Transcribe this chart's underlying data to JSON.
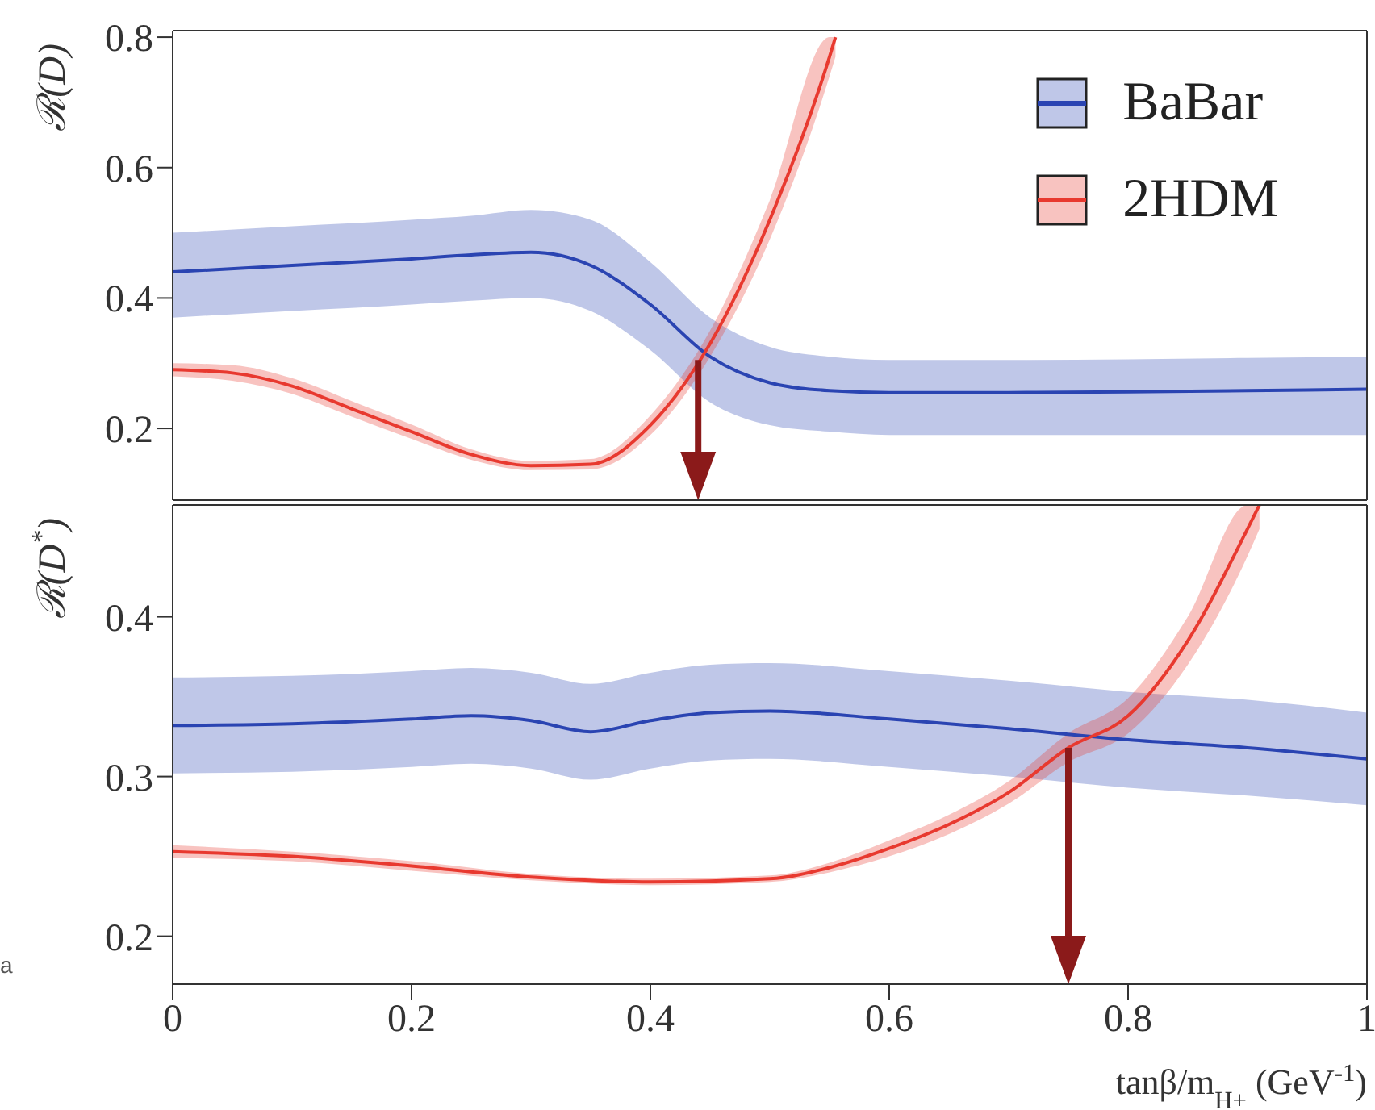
{
  "chart_data": [
    {
      "type": "line",
      "ylabel": "ℛ(D)",
      "xlim": [
        0,
        1
      ],
      "xticks": [
        0,
        0.2,
        0.4,
        0.6,
        0.8,
        1
      ],
      "ylim": [
        0.09,
        0.81
      ],
      "yticks": [
        0.2,
        0.4,
        0.6,
        0.8
      ],
      "tick_labels": "y",
      "legend": "top right",
      "grid": false,
      "series": [
        {
          "name": "BaBar",
          "color": "#2a44b2",
          "x": [
            0,
            0.1,
            0.2,
            0.25,
            0.3,
            0.35,
            0.4,
            0.45,
            0.5,
            0.55,
            0.6,
            0.7,
            0.8,
            0.9,
            1
          ],
          "values": [
            0.44,
            0.45,
            0.46,
            0.466,
            0.47,
            0.45,
            0.39,
            0.31,
            0.27,
            0.258,
            0.255,
            0.255,
            0.256,
            0.258,
            0.26
          ],
          "lower": [
            0.37,
            0.38,
            0.39,
            0.396,
            0.4,
            0.38,
            0.32,
            0.24,
            0.205,
            0.195,
            0.19,
            0.19,
            0.19,
            0.19,
            0.19
          ],
          "upper": [
            0.5,
            0.51,
            0.52,
            0.526,
            0.535,
            0.52,
            0.455,
            0.37,
            0.325,
            0.31,
            0.305,
            0.305,
            0.306,
            0.308,
            0.31
          ]
        },
        {
          "name": "2HDM",
          "color": "#e8392f",
          "x": [
            0,
            0.05,
            0.1,
            0.15,
            0.2,
            0.25,
            0.3,
            0.35,
            0.4,
            0.45,
            0.5,
            0.55,
            0.555
          ],
          "values": [
            0.29,
            0.285,
            0.265,
            0.23,
            0.195,
            0.16,
            0.143,
            0.145,
            0.205,
            0.33,
            0.52,
            0.77,
            0.8
          ],
          "lower": [
            0.28,
            0.273,
            0.253,
            0.218,
            0.184,
            0.152,
            0.136,
            0.137,
            0.19,
            0.31,
            0.49,
            0.74,
            0.77
          ],
          "upper": [
            0.3,
            0.297,
            0.277,
            0.242,
            0.206,
            0.168,
            0.15,
            0.153,
            0.22,
            0.35,
            0.55,
            0.8,
            0.8
          ]
        }
      ],
      "ref_lines": [
        {
          "axis": "x",
          "value": 0.44,
          "color": "#8b1a1a"
        }
      ]
    },
    {
      "type": "line",
      "ylabel": "ℛ(D$^{*}$)",
      "xlabel": "tanβ/m$_{H+}$ (GeV$^{-1}$)",
      "xlim": [
        0,
        1
      ],
      "xticks": [
        0,
        0.2,
        0.4,
        0.6,
        0.8,
        1
      ],
      "ylim": [
        0.17,
        0.47
      ],
      "yticks": [
        0.2,
        0.3,
        0.4
      ],
      "grid": false,
      "series": [
        {
          "color": "#2a44b2",
          "x": [
            0,
            0.1,
            0.2,
            0.25,
            0.3,
            0.35,
            0.4,
            0.45,
            0.5,
            0.6,
            0.7,
            0.8,
            0.9,
            1
          ],
          "values": [
            0.332,
            0.333,
            0.336,
            0.338,
            0.335,
            0.328,
            0.335,
            0.34,
            0.341,
            0.336,
            0.33,
            0.323,
            0.318,
            0.311
          ],
          "lower": [
            0.302,
            0.303,
            0.306,
            0.308,
            0.305,
            0.298,
            0.305,
            0.31,
            0.311,
            0.306,
            0.3,
            0.293,
            0.288,
            0.282
          ],
          "upper": [
            0.362,
            0.363,
            0.366,
            0.368,
            0.365,
            0.358,
            0.365,
            0.37,
            0.371,
            0.366,
            0.36,
            0.353,
            0.348,
            0.34
          ]
        },
        {
          "color": "#e8392f",
          "x": [
            0,
            0.1,
            0.2,
            0.3,
            0.4,
            0.5,
            0.55,
            0.6,
            0.65,
            0.7,
            0.75,
            0.8,
            0.85,
            0.9,
            0.91
          ],
          "values": [
            0.253,
            0.25,
            0.244,
            0.237,
            0.234,
            0.236,
            0.243,
            0.255,
            0.27,
            0.29,
            0.318,
            0.338,
            0.385,
            0.455,
            0.47
          ],
          "lower": [
            0.249,
            0.247,
            0.241,
            0.235,
            0.232,
            0.234,
            0.24,
            0.25,
            0.264,
            0.283,
            0.309,
            0.327,
            0.37,
            0.438,
            0.455
          ],
          "upper": [
            0.257,
            0.253,
            0.247,
            0.239,
            0.236,
            0.238,
            0.246,
            0.26,
            0.276,
            0.297,
            0.327,
            0.349,
            0.4,
            0.47,
            0.47
          ]
        }
      ],
      "ref_lines": [
        {
          "axis": "x",
          "value": 0.75,
          "color": "#8b1a1a"
        }
      ],
      "annotations": [
        "a"
      ]
    }
  ]
}
